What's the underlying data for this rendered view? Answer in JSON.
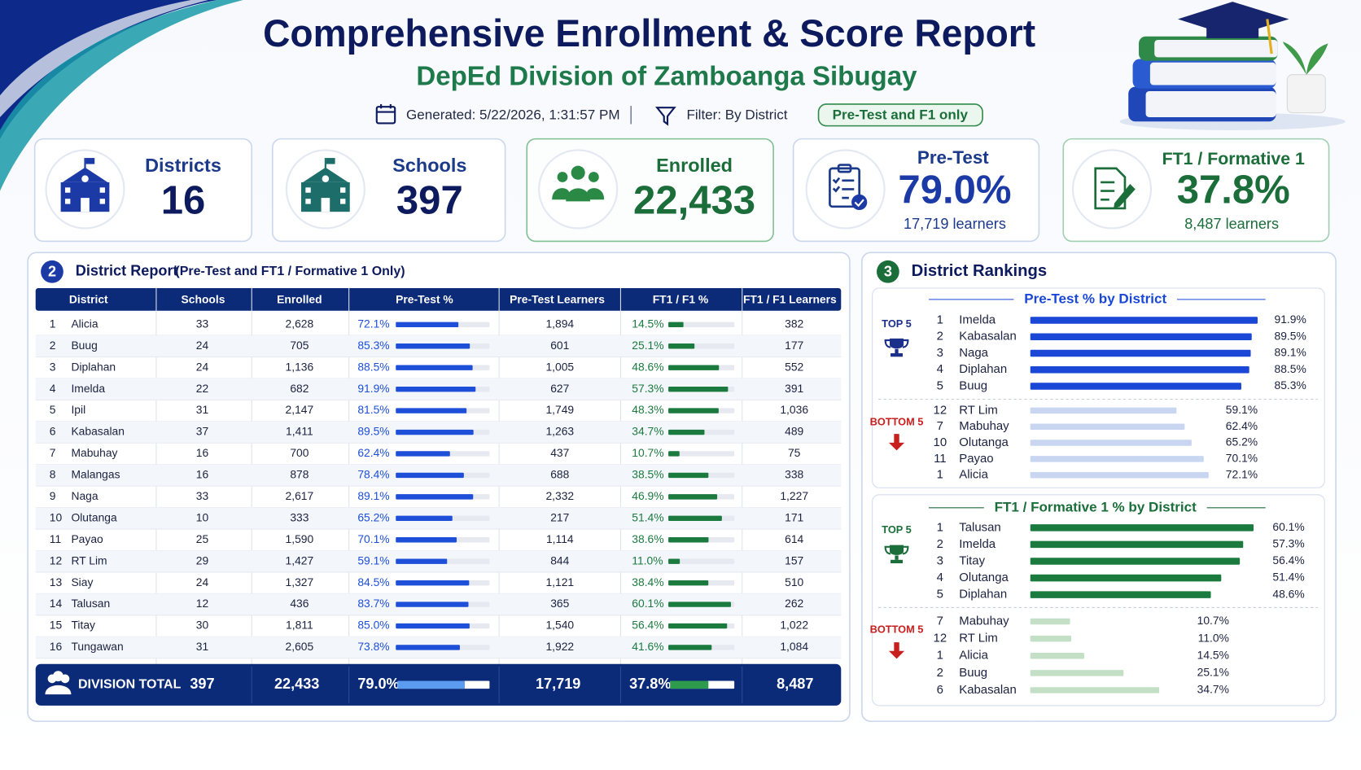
{
  "header": {
    "title": "Comprehensive Enrollment & Score Report",
    "subtitle": "DepEd Division of Zamboanga Sibugay",
    "generated": "Generated: 5/22/2026, 1:31:57 PM",
    "filter": "Filter: By District",
    "badge": "Pre-Test and F1 only"
  },
  "kpis": [
    {
      "label": "Districts",
      "value": "16"
    },
    {
      "label": "Schools",
      "value": "397"
    },
    {
      "label": "Enrolled",
      "value": "22,433"
    },
    {
      "label": "Pre-Test",
      "value": "79.0%",
      "sub": "17,719 learners"
    },
    {
      "label": "FT1 / Formative 1",
      "value": "37.8%",
      "sub": "8,487 learners"
    }
  ],
  "table": {
    "number": "2",
    "title": "District Report",
    "note": "(Pre-Test and FT1 / Formative 1 Only)",
    "columns": [
      "District",
      "Schools",
      "Enrolled",
      "Pre-Test %",
      "Pre-Test Learners",
      "FT1 / F1 %",
      "FT1 / F1 Learners"
    ],
    "rows": [
      [
        1,
        "Alicia",
        33,
        "2,628",
        {
          "value": 72.1,
          "label": "72.1%"
        },
        "1,894",
        {
          "value": 14.5,
          "label": "14.5%"
        },
        382
      ],
      [
        2,
        "Buug",
        24,
        705,
        {
          "value": 85.3,
          "label": "85.3%"
        },
        601,
        {
          "value": 25.1,
          "label": "25.1%"
        },
        177
      ],
      [
        3,
        "Diplahan",
        24,
        "1,136",
        {
          "value": 88.5,
          "label": "88.5%"
        },
        "1,005",
        {
          "value": 48.6,
          "label": "48.6%"
        },
        552
      ],
      [
        4,
        "Imelda",
        22,
        682,
        {
          "value": 91.9,
          "label": "91.9%"
        },
        627,
        {
          "value": 57.3,
          "label": "57.3%"
        },
        391
      ],
      [
        5,
        "Ipil",
        31,
        "2,147",
        {
          "value": 81.5,
          "label": "81.5%"
        },
        "1,749",
        {
          "value": 48.3,
          "label": "48.3%"
        },
        "1,036"
      ],
      [
        6,
        "Kabasalan",
        37,
        "1,411",
        {
          "value": 89.5,
          "label": "89.5%"
        },
        "1,263",
        {
          "value": 34.7,
          "label": "34.7%"
        },
        489
      ],
      [
        7,
        "Mabuhay",
        16,
        700,
        {
          "value": 62.4,
          "label": "62.4%"
        },
        437,
        {
          "value": 10.7,
          "label": "10.7%"
        },
        75
      ],
      [
        8,
        "Malangas",
        16,
        878,
        {
          "value": 78.4,
          "label": "78.4%"
        },
        688,
        {
          "value": 38.5,
          "label": "38.5%"
        },
        338
      ],
      [
        9,
        "Naga",
        33,
        "2,617",
        {
          "value": 89.1,
          "label": "89.1%"
        },
        "2,332",
        {
          "value": 46.9,
          "label": "46.9%"
        },
        "1,227"
      ],
      [
        10,
        "Olutanga",
        10,
        333,
        {
          "value": 65.2,
          "label": "65.2%"
        },
        217,
        {
          "value": 51.4,
          "label": "51.4%"
        },
        171
      ],
      [
        11,
        "Payao",
        25,
        "1,590",
        {
          "value": 70.1,
          "label": "70.1%"
        },
        "1,114",
        {
          "value": 38.6,
          "label": "38.6%"
        },
        614
      ],
      [
        12,
        "RT Lim",
        29,
        "1,427",
        {
          "value": 59.1,
          "label": "59.1%"
        },
        844,
        {
          "value": 11.0,
          "label": "11.0%"
        },
        157
      ],
      [
        13,
        "Siay",
        24,
        "1,327",
        {
          "value": 84.5,
          "label": "84.5%"
        },
        "1,121",
        {
          "value": 38.4,
          "label": "38.4%"
        },
        510
      ],
      [
        14,
        "Talusan",
        12,
        436,
        {
          "value": 83.7,
          "label": "83.7%"
        },
        365,
        {
          "value": 60.1,
          "label": "60.1%"
        },
        262
      ],
      [
        15,
        "Titay",
        30,
        "1,811",
        {
          "value": 85.0,
          "label": "85.0%"
        },
        "1,540",
        {
          "value": 56.4,
          "label": "56.4%"
        },
        "1,022"
      ],
      [
        16,
        "Tungawan",
        31,
        "2,605",
        {
          "value": 73.8,
          "label": "73.8%"
        },
        "1,922",
        {
          "value": 41.6,
          "label": "41.6%"
        },
        "1,084"
      ]
    ],
    "total": {
      "label": "DIVISION TOTAL",
      "cells": [
        397,
        "22,433",
        {
          "value": 79.0,
          "label": "79.0%"
        },
        "17,719",
        {
          "value": 37.8,
          "label": "37.8%"
        },
        "8,487"
      ]
    }
  },
  "rankings": {
    "number": "3",
    "title": "District Rankings",
    "panels": [
      {
        "title": "Pre-Test % by District",
        "groups": [
          {
            "label": "TOP 5",
            "items": [
              {
                "rank": 1,
                "name": "Imelda",
                "value": 91.9,
                "label": "91.9%"
              },
              {
                "rank": 2,
                "name": "Kabasalan",
                "value": 89.5,
                "label": "89.5%"
              },
              {
                "rank": 3,
                "name": "Naga",
                "value": 89.1,
                "label": "89.1%"
              },
              {
                "rank": 4,
                "name": "Diplahan",
                "value": 88.5,
                "label": "88.5%"
              },
              {
                "rank": 5,
                "name": "Buug",
                "value": 85.3,
                "label": "85.3%"
              }
            ]
          },
          {
            "label": "BOTTOM 5",
            "items": [
              {
                "rank": 12,
                "name": "RT Lim",
                "value": 59.1,
                "label": "59.1%"
              },
              {
                "rank": 7,
                "name": "Mabuhay",
                "value": 62.4,
                "label": "62.4%"
              },
              {
                "rank": 10,
                "name": "Olutanga",
                "value": 65.2,
                "label": "65.2%"
              },
              {
                "rank": 11,
                "name": "Payao",
                "value": 70.1,
                "label": "70.1%"
              },
              {
                "rank": 1,
                "name": "Alicia",
                "value": 72.1,
                "label": "72.1%"
              }
            ]
          }
        ]
      },
      {
        "title": "FT1 / Formative 1 % by District",
        "groups": [
          {
            "label": "TOP 5",
            "items": [
              {
                "rank": 1,
                "name": "Talusan",
                "value": 60.1,
                "label": "60.1%"
              },
              {
                "rank": 2,
                "name": "Imelda",
                "value": 57.3,
                "label": "57.3%"
              },
              {
                "rank": 3,
                "name": "Titay",
                "value": 56.4,
                "label": "56.4%"
              },
              {
                "rank": 4,
                "name": "Olutanga",
                "value": 51.4,
                "label": "51.4%"
              },
              {
                "rank": 5,
                "name": "Diplahan",
                "value": 48.6,
                "label": "48.6%"
              }
            ]
          },
          {
            "label": "BOTTOM 5",
            "items": [
              {
                "rank": 7,
                "name": "Mabuhay",
                "value": 10.7,
                "label": "10.7%"
              },
              {
                "rank": 12,
                "name": "RT Lim",
                "value": 11.0,
                "label": "11.0%"
              },
              {
                "rank": 1,
                "name": "Alicia",
                "value": 14.5,
                "label": "14.5%"
              },
              {
                "rank": 2,
                "name": "Buug",
                "value": 25.1,
                "label": "25.1%"
              },
              {
                "rank": 6,
                "name": "Kabasalan",
                "value": 34.7,
                "label": "34.7%"
              }
            ]
          }
        ]
      }
    ]
  }
}
